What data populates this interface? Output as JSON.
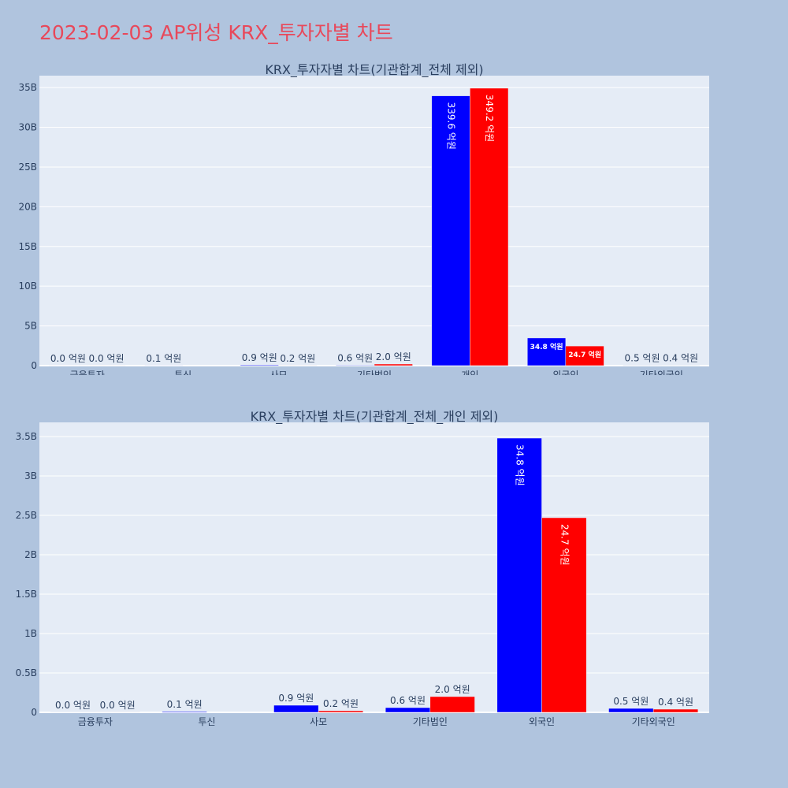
{
  "page_title": "2023-02-03 AP위성 KRX_투자자별 차트",
  "colors": {
    "background": "#b0c4de",
    "plot_bg": "#e5ecf6",
    "title": "#e8485a",
    "series_a": "#0000ff",
    "series_b": "#ff0000"
  },
  "chart_data": [
    {
      "type": "bar",
      "title": "KRX_투자자별 차트(기관합계_전체 제외)",
      "categories": [
        "금융투자",
        "투신",
        "사모",
        "기타법인",
        "개인",
        "외국인",
        "기타외국인"
      ],
      "ylim": [
        0,
        36500000000
      ],
      "yticks": [
        0,
        5000000000,
        10000000000,
        15000000000,
        20000000000,
        25000000000,
        30000000000,
        35000000000
      ],
      "ytick_labels": [
        "0",
        "5B",
        "10B",
        "15B",
        "20B",
        "25B",
        "30B",
        "35B"
      ],
      "grid": true,
      "series": [
        {
          "color": "#0000ff",
          "values": [
            2000000,
            10000000,
            90000000,
            60000000,
            33960000000,
            3480000000,
            50000000
          ],
          "labels": [
            "0.0 억원",
            "0.1 억원",
            "0.9 억원",
            "0.6 억원",
            "339.6 억원",
            "34.8 억원",
            "0.5 억원"
          ]
        },
        {
          "color": "#ff0000",
          "values": [
            2000000,
            0,
            20000000,
            200000000,
            34920000000,
            2470000000,
            40000000
          ],
          "labels": [
            "0.0 억원",
            "",
            "0.2 억원",
            "2.0 억원",
            "349.2 억원",
            "24.7 억원",
            "0.4 억원"
          ]
        }
      ]
    },
    {
      "type": "bar",
      "title": "KRX_투자자별 차트(기관합계_전체_개인 제외)",
      "categories": [
        "금융투자",
        "투신",
        "사모",
        "기타법인",
        "외국인",
        "기타외국인"
      ],
      "ylim": [
        0,
        3680000000
      ],
      "yticks": [
        0,
        500000000,
        1000000000,
        1500000000,
        2000000000,
        2500000000,
        3000000000,
        3500000000
      ],
      "ytick_labels": [
        "0",
        "0.5B",
        "1B",
        "1.5B",
        "2B",
        "2.5B",
        "3B",
        "3.5B"
      ],
      "grid": true,
      "series": [
        {
          "color": "#0000ff",
          "values": [
            2000000,
            10000000,
            90000000,
            60000000,
            3480000000,
            50000000
          ],
          "labels": [
            "0.0 억원",
            "0.1 억원",
            "0.9 억원",
            "0.6 억원",
            "34.8 억원",
            "0.5 억원"
          ]
        },
        {
          "color": "#ff0000",
          "values": [
            2000000,
            0,
            20000000,
            200000000,
            2470000000,
            40000000
          ],
          "labels": [
            "0.0 억원",
            "",
            "0.2 억원",
            "2.0 억원",
            "24.7 억원",
            "0.4 억원"
          ]
        }
      ]
    }
  ]
}
